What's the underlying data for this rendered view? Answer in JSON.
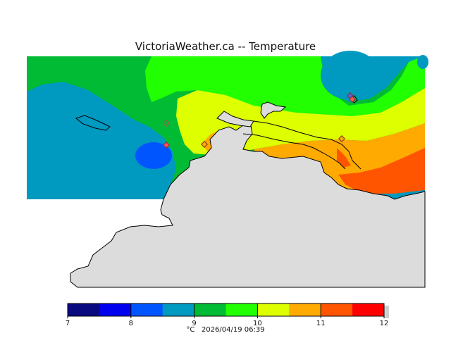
{
  "title": "VictoriaWeather.ca -- Temperature",
  "colorbar": {
    "colors": [
      "#0a0a80",
      "#0000ee",
      "#0055ff",
      "#0099c0",
      "#00bb33",
      "#22ff00",
      "#ddff00",
      "#ffaa00",
      "#ff5500",
      "#ff0000"
    ],
    "ticks": [
      "7",
      "8",
      "9",
      "10",
      "11",
      "12"
    ],
    "unit_label": "°C",
    "timestamp": "2026/04/19 06:39"
  },
  "map": {
    "land_color": "#dcdcdc",
    "coast_color": "#000000",
    "station_marker_color": "#b05050"
  }
}
